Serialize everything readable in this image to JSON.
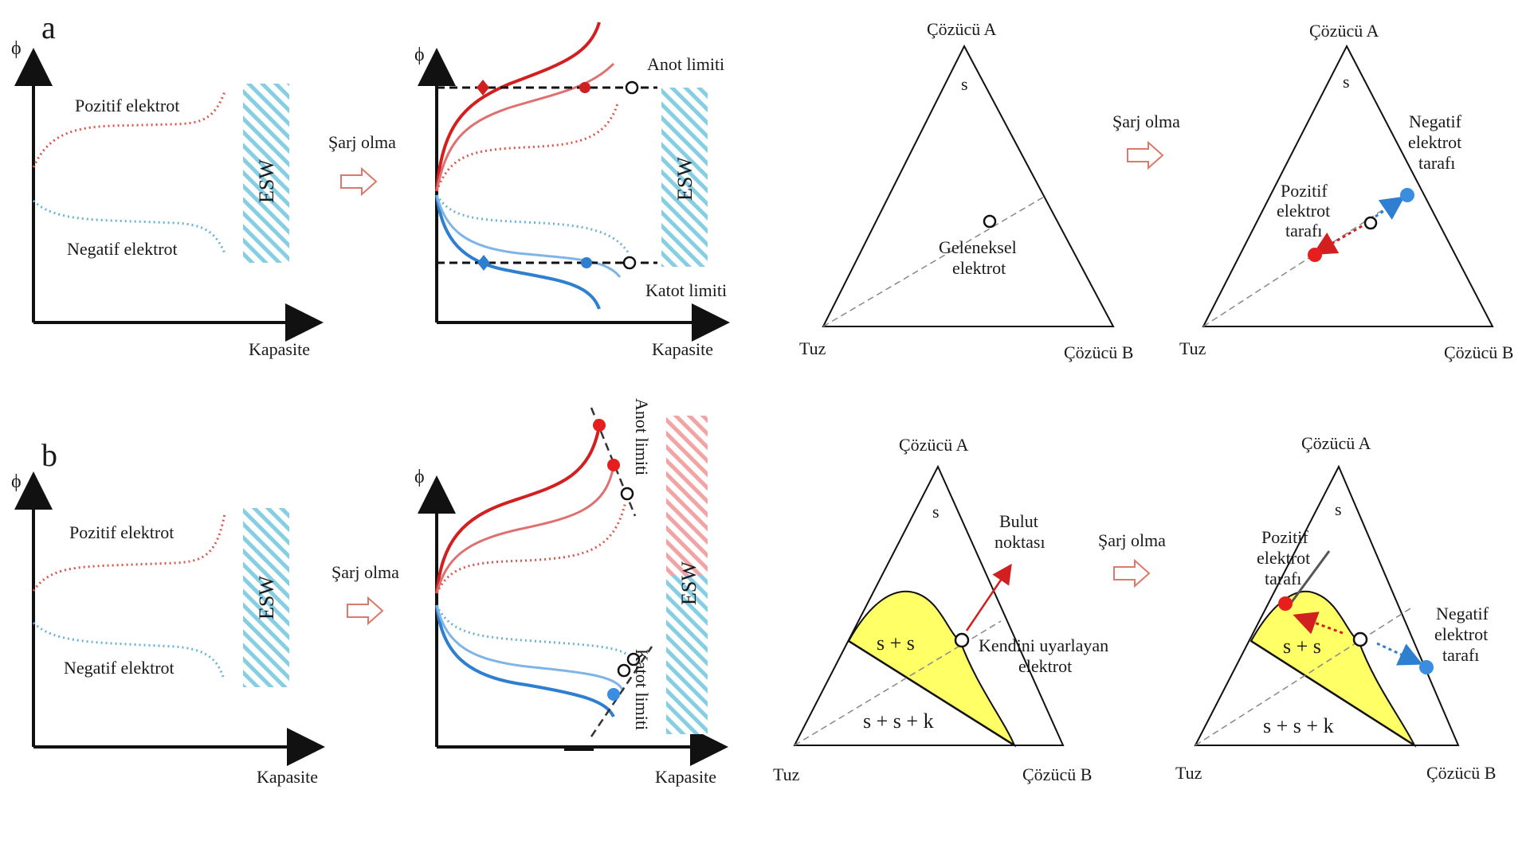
{
  "panels": {
    "a": "a",
    "b": "b"
  },
  "axes": {
    "phi": "ϕ",
    "x_label": "Kapasite"
  },
  "electrodes": {
    "positive": "Pozitif elektrot",
    "negative": "Negatif elektrot"
  },
  "esw": "ESW",
  "charging": "Şarj olma",
  "limits": {
    "anode": "Anot limiti",
    "cathode": "Katot limiti"
  },
  "ternary": {
    "solvent_a": "Çözücü A",
    "solvent_b": "Çözücü B",
    "salt": "Tuz",
    "s": "s",
    "conventional_electrode": [
      "Geleneksel",
      "elektrot"
    ],
    "positive_side": [
      "Pozitif",
      "elektrot",
      "tarafı"
    ],
    "negative_side": [
      "Negatif",
      "elektrot",
      "tarafı"
    ],
    "cloud_point": [
      "Bulut",
      "noktası"
    ],
    "self_adapting_electrode": [
      "Kendini uyarlayan",
      "elektrot"
    ],
    "region_ss": "s + s",
    "region_ssk": "s + s + k"
  },
  "colors": {
    "positive_dark": "#d21f1f",
    "positive_mid": "#e07070",
    "positive_light": "#d9574f",
    "negative_dark": "#2f7fd0",
    "negative_mid": "#7fb4e6",
    "negative_light": "#6ab3d8",
    "esw_blue": "#7fcfe0",
    "esw_red": "#f0a0a0",
    "yellow_region": "#ffff66",
    "arrow_outline": "#d97a6a"
  }
}
